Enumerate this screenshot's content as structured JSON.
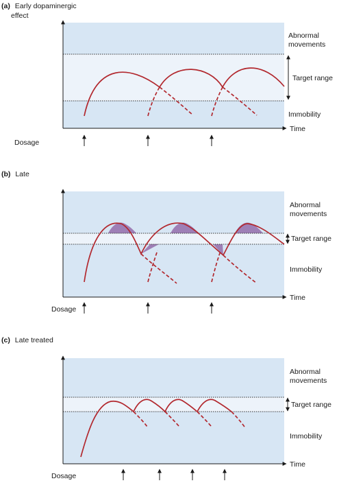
{
  "colors": {
    "zone_outer": "#d7e6f4",
    "zone_target": "#edf3fa",
    "curve": "#b2282e",
    "overlap_fill": "#9e7fb6",
    "axis": "#1a1a1a",
    "dotted": "#333333"
  },
  "labels": {
    "abnormal_1": "Abnormal",
    "abnormal_2": "movements",
    "target": "Target range",
    "immobility": "Immobility",
    "time": "Time",
    "dosage": "Dosage"
  },
  "panels": [
    {
      "letter": "(a)",
      "title_1": "Early dopaminergic",
      "title_2": "effect"
    },
    {
      "letter": "(b)",
      "title_1": "Late",
      "title_2": ""
    },
    {
      "letter": "(c)",
      "title_1": "Late treated",
      "title_2": ""
    }
  ]
}
